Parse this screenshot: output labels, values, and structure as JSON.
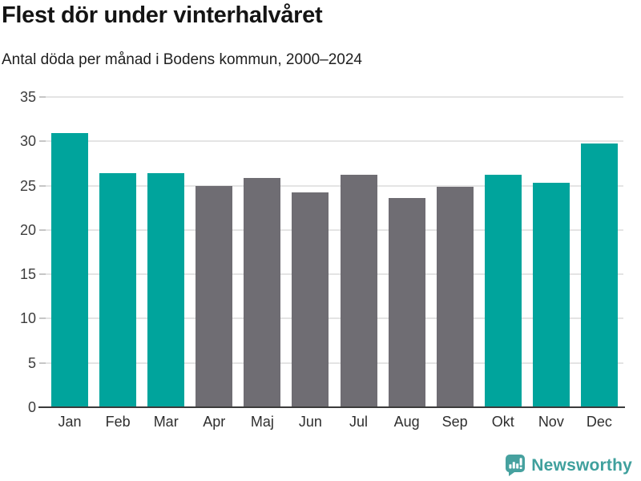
{
  "header": {
    "title": "Flest dör under vinterhalvåret",
    "subtitle": "Antal döda per månad i Bodens kommun, 2000–2024"
  },
  "chart_data": {
    "type": "bar",
    "title": "Flest dör under vinterhalvåret",
    "subtitle": "Antal döda per månad i Bodens kommun, 2000–2024",
    "categories": [
      "Jan",
      "Feb",
      "Mar",
      "Apr",
      "Maj",
      "Jun",
      "Jul",
      "Aug",
      "Sep",
      "Okt",
      "Nov",
      "Dec"
    ],
    "values": [
      30.9,
      26.4,
      26.4,
      25.0,
      25.9,
      24.2,
      26.2,
      23.6,
      24.9,
      26.2,
      25.3,
      29.8
    ],
    "highlighted": [
      true,
      true,
      true,
      false,
      false,
      false,
      false,
      false,
      false,
      true,
      true,
      true
    ],
    "xlabel": "",
    "ylabel": "",
    "ylim": [
      0,
      35
    ],
    "yticks": [
      0,
      5,
      10,
      15,
      20,
      25,
      30,
      35
    ],
    "grid": true,
    "legend": false,
    "colors": {
      "highlight": "#00a49c",
      "muted": "#6f6d73"
    }
  },
  "footer": {
    "brand": "Newsworthy",
    "brand_color": "#3fa09d",
    "logo_icon": "bar-chart-speech-bubble"
  }
}
